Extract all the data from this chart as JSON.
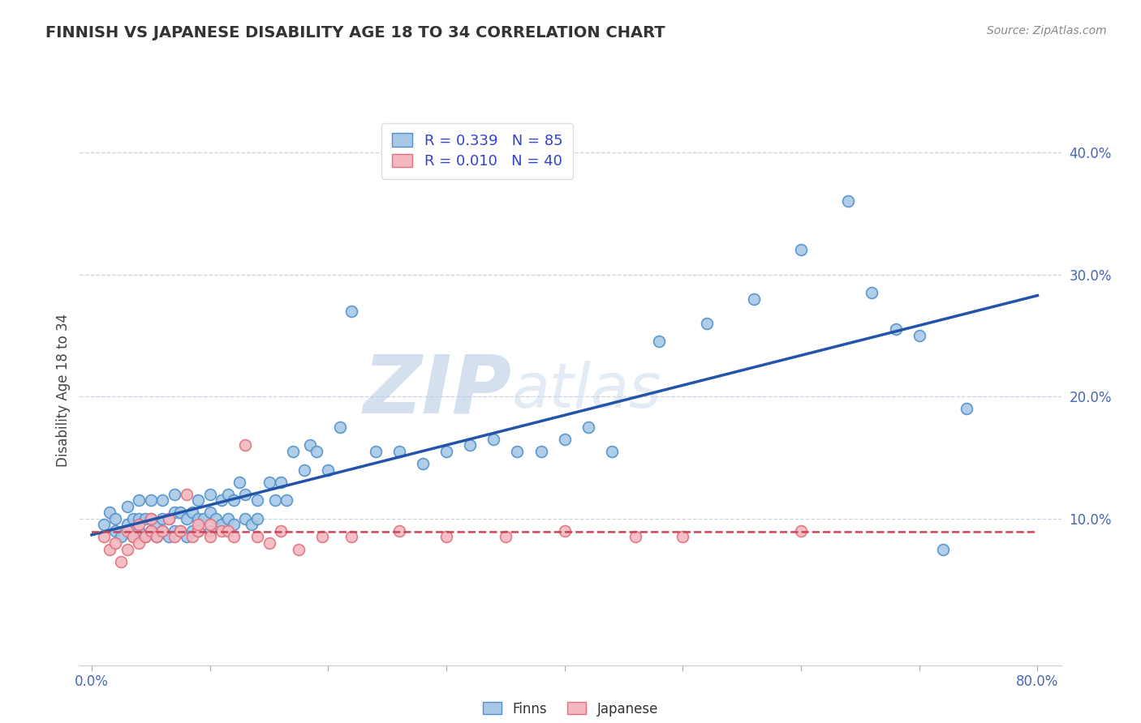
{
  "title": "FINNISH VS JAPANESE DISABILITY AGE 18 TO 34 CORRELATION CHART",
  "source": "Source: ZipAtlas.com",
  "ylabel": "Disability Age 18 to 34",
  "xlim": [
    -0.01,
    0.82
  ],
  "ylim": [
    -0.02,
    0.43
  ],
  "xticks": [
    0.0,
    0.8
  ],
  "yticks": [
    0.1,
    0.2,
    0.3,
    0.4
  ],
  "ytick_labels": [
    "10.0%",
    "20.0%",
    "30.0%",
    "40.0%"
  ],
  "xtick_labels": [
    "0.0%",
    "80.0%"
  ],
  "finn_color": "#a8c8e8",
  "finn_edge_color": "#5090c8",
  "japanese_color": "#f4b8c0",
  "japanese_edge_color": "#e07080",
  "finn_line_color": "#2255aa",
  "japanese_line_color": "#cc4455",
  "tick_color": "#4466bb",
  "grid_color": "#c8d4e4",
  "finn_R": 0.339,
  "finn_N": 85,
  "japanese_R": 0.01,
  "japanese_N": 40,
  "watermark_zip": "ZIP",
  "watermark_atlas": "atlas",
  "watermark_color": "#c8d8ec",
  "legend_finn_label": "R = 0.339   N = 85",
  "legend_japanese_label": "R = 0.010   N = 40",
  "finn_scatter_x": [
    0.01,
    0.015,
    0.02,
    0.02,
    0.025,
    0.03,
    0.03,
    0.035,
    0.035,
    0.04,
    0.04,
    0.04,
    0.045,
    0.045,
    0.05,
    0.05,
    0.05,
    0.055,
    0.055,
    0.06,
    0.06,
    0.06,
    0.065,
    0.065,
    0.07,
    0.07,
    0.07,
    0.075,
    0.075,
    0.08,
    0.08,
    0.085,
    0.085,
    0.09,
    0.09,
    0.09,
    0.095,
    0.1,
    0.1,
    0.1,
    0.105,
    0.11,
    0.11,
    0.115,
    0.115,
    0.12,
    0.12,
    0.125,
    0.13,
    0.13,
    0.135,
    0.14,
    0.14,
    0.15,
    0.155,
    0.16,
    0.165,
    0.17,
    0.18,
    0.185,
    0.19,
    0.2,
    0.21,
    0.22,
    0.24,
    0.26,
    0.28,
    0.3,
    0.32,
    0.34,
    0.36,
    0.38,
    0.4,
    0.42,
    0.44,
    0.48,
    0.52,
    0.56,
    0.6,
    0.64,
    0.66,
    0.68,
    0.7,
    0.72,
    0.74
  ],
  "finn_scatter_y": [
    0.095,
    0.105,
    0.09,
    0.1,
    0.085,
    0.095,
    0.11,
    0.085,
    0.1,
    0.09,
    0.1,
    0.115,
    0.085,
    0.1,
    0.09,
    0.1,
    0.115,
    0.085,
    0.095,
    0.09,
    0.1,
    0.115,
    0.085,
    0.1,
    0.09,
    0.105,
    0.12,
    0.09,
    0.105,
    0.085,
    0.1,
    0.09,
    0.105,
    0.09,
    0.1,
    0.115,
    0.1,
    0.09,
    0.105,
    0.12,
    0.1,
    0.095,
    0.115,
    0.1,
    0.12,
    0.095,
    0.115,
    0.13,
    0.1,
    0.12,
    0.095,
    0.1,
    0.115,
    0.13,
    0.115,
    0.13,
    0.115,
    0.155,
    0.14,
    0.16,
    0.155,
    0.14,
    0.175,
    0.27,
    0.155,
    0.155,
    0.145,
    0.155,
    0.16,
    0.165,
    0.155,
    0.155,
    0.165,
    0.175,
    0.155,
    0.245,
    0.26,
    0.28,
    0.32,
    0.36,
    0.285,
    0.255,
    0.25,
    0.075,
    0.19
  ],
  "japanese_scatter_x": [
    0.01,
    0.015,
    0.02,
    0.025,
    0.03,
    0.03,
    0.035,
    0.04,
    0.04,
    0.045,
    0.05,
    0.05,
    0.055,
    0.06,
    0.065,
    0.07,
    0.075,
    0.08,
    0.085,
    0.09,
    0.09,
    0.1,
    0.1,
    0.11,
    0.115,
    0.12,
    0.13,
    0.14,
    0.15,
    0.16,
    0.175,
    0.195,
    0.22,
    0.26,
    0.3,
    0.35,
    0.4,
    0.46,
    0.5,
    0.6
  ],
  "japanese_scatter_y": [
    0.085,
    0.075,
    0.08,
    0.065,
    0.075,
    0.09,
    0.085,
    0.08,
    0.095,
    0.085,
    0.09,
    0.1,
    0.085,
    0.09,
    0.1,
    0.085,
    0.09,
    0.12,
    0.085,
    0.09,
    0.095,
    0.085,
    0.095,
    0.09,
    0.09,
    0.085,
    0.16,
    0.085,
    0.08,
    0.09,
    0.075,
    0.085,
    0.085,
    0.09,
    0.085,
    0.085,
    0.09,
    0.085,
    0.085,
    0.09
  ]
}
